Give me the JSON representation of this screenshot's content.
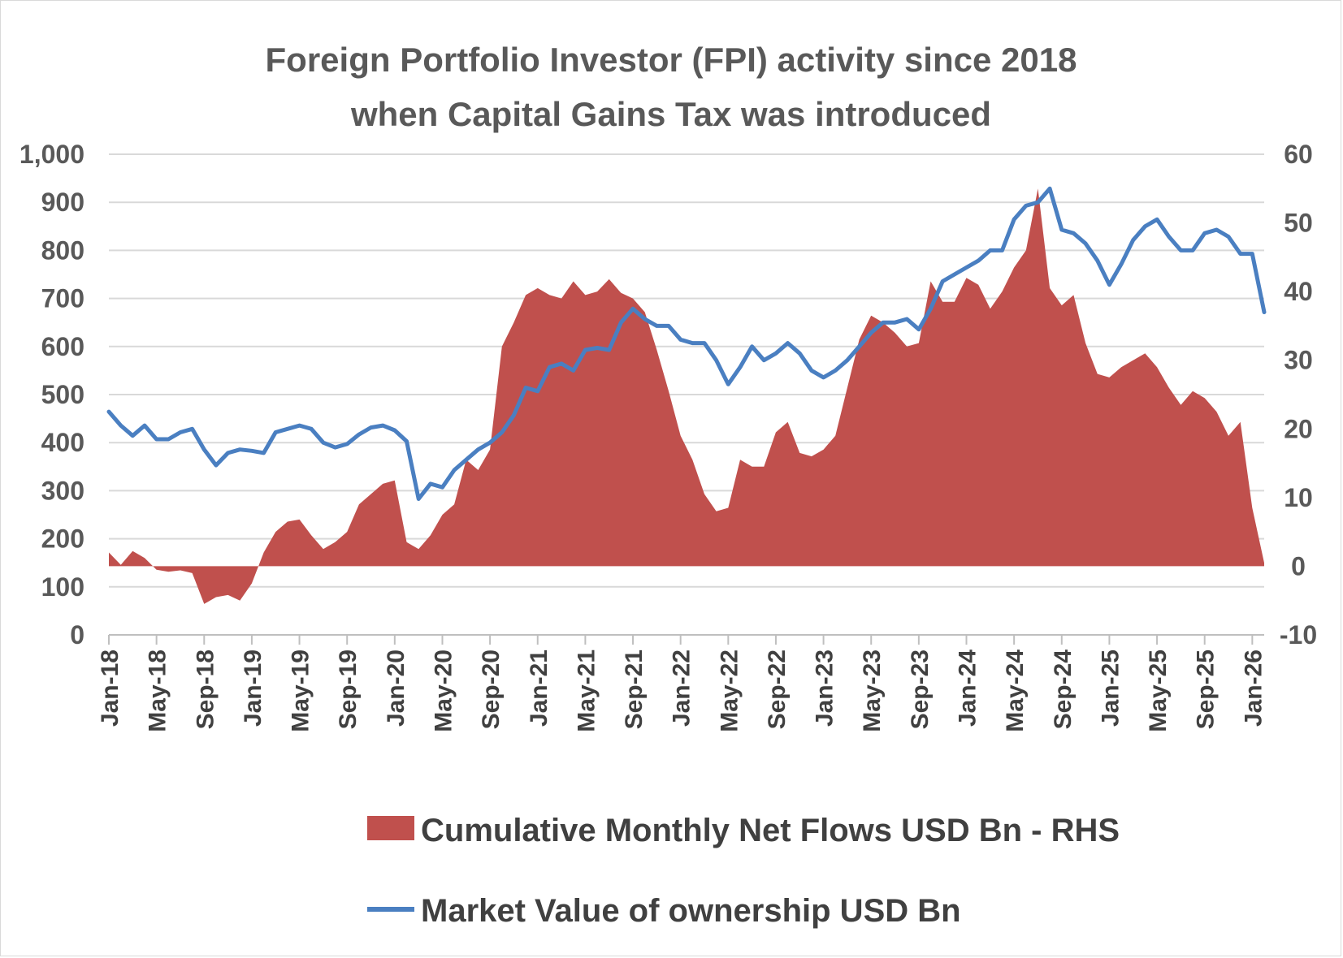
{
  "chart_data": {
    "type": "area+line",
    "title": "Foreign Portfolio Investor (FPI) activity since 2018",
    "subtitle": "when Capital Gains Tax was introduced",
    "left_axis": {
      "ylim": [
        0,
        1000
      ],
      "ticks": [
        "1,000",
        "900",
        "800",
        "700",
        "600",
        "500",
        "400",
        "300",
        "200",
        "100",
        "0"
      ]
    },
    "right_axis": {
      "ylim": [
        -10,
        60
      ],
      "ticks": [
        "60",
        "50",
        "40",
        "30",
        "20",
        "10",
        "0",
        "-10"
      ]
    },
    "x_ticks": [
      "Jan-18",
      "May-18",
      "Sep-18",
      "Jan-19",
      "May-19",
      "Sep-19",
      "Jan-20",
      "May-20",
      "Sep-20",
      "Jan-21",
      "May-21",
      "Sep-21",
      "Jan-22",
      "May-22",
      "Sep-22",
      "Jan-23",
      "May-23",
      "Sep-23",
      "Jan-24",
      "May-24",
      "Sep-24",
      "Jan-25",
      "May-25",
      "Sep-25",
      "Jan-26"
    ],
    "gridlines": true,
    "legend_position": "bottom",
    "series": [
      {
        "name": "Cumulative Monthly Net Flows  USD Bn - RHS",
        "type": "area",
        "axis": "right",
        "color": "#c0504d",
        "values": [
          2.0,
          0.2,
          2.2,
          1.2,
          -0.5,
          -0.8,
          -0.6,
          -1.0,
          -5.5,
          -4.5,
          -4.2,
          -5.0,
          -2.5,
          2.0,
          5.0,
          6.5,
          6.8,
          4.5,
          2.5,
          3.5,
          5.0,
          9.0,
          10.5,
          12.0,
          12.5,
          3.5,
          2.5,
          4.5,
          7.5,
          9.0,
          15.5,
          14.0,
          17.0,
          32.0,
          35.5,
          39.5,
          40.5,
          39.5,
          39.0,
          41.5,
          39.5,
          40.0,
          41.8,
          39.8,
          39.0,
          37.0,
          31.5,
          25.5,
          19.0,
          15.5,
          10.5,
          8.0,
          8.5,
          15.5,
          14.5,
          14.5,
          19.5,
          21.0,
          16.5,
          16.0,
          17.0,
          19.0,
          26.0,
          33.0,
          36.5,
          35.5,
          34.0,
          32.0,
          32.5,
          41.5,
          38.5,
          38.5,
          42.0,
          41.0,
          37.5,
          40.0,
          43.5,
          46.0,
          55.0,
          40.5,
          38.0,
          39.5,
          32.5,
          28.0,
          27.5,
          29.0,
          30.0,
          31.0,
          29.0,
          26.0,
          23.5,
          25.5,
          24.5,
          22.5,
          19.0,
          21.0,
          8.5,
          0.5
        ]
      },
      {
        "name": "Market Value of ownership USD Bn",
        "type": "line",
        "axis": "right",
        "color": "#4a7fc1",
        "values": [
          22.5,
          20.5,
          19.0,
          20.5,
          18.5,
          18.5,
          19.5,
          20.0,
          17.0,
          14.7,
          16.5,
          17.0,
          16.8,
          16.5,
          19.5,
          20.0,
          20.5,
          20.0,
          18.0,
          17.3,
          17.8,
          19.2,
          20.2,
          20.5,
          19.8,
          18.2,
          9.8,
          12.0,
          11.5,
          14.0,
          15.5,
          17.0,
          18.0,
          19.5,
          22.0,
          26.0,
          25.5,
          29.0,
          29.5,
          28.5,
          31.5,
          31.8,
          31.5,
          35.5,
          37.5,
          36.0,
          35.0,
          35.0,
          33.0,
          32.5,
          32.5,
          30.0,
          26.5,
          29.0,
          32.0,
          30.0,
          31.0,
          32.5,
          31.0,
          28.5,
          27.5,
          28.5,
          30.0,
          32.0,
          34.0,
          35.5,
          35.5,
          36.0,
          34.5,
          37.5,
          41.5,
          42.5,
          43.5,
          44.5,
          46.0,
          46.0,
          50.5,
          52.5,
          53.0,
          55.0,
          49.0,
          48.5,
          47.0,
          44.5,
          41.0,
          44.0,
          47.5,
          49.5,
          50.5,
          48.0,
          46.0,
          46.0,
          48.5,
          49.0,
          48.0,
          45.5,
          45.5,
          37.0
        ]
      }
    ]
  }
}
